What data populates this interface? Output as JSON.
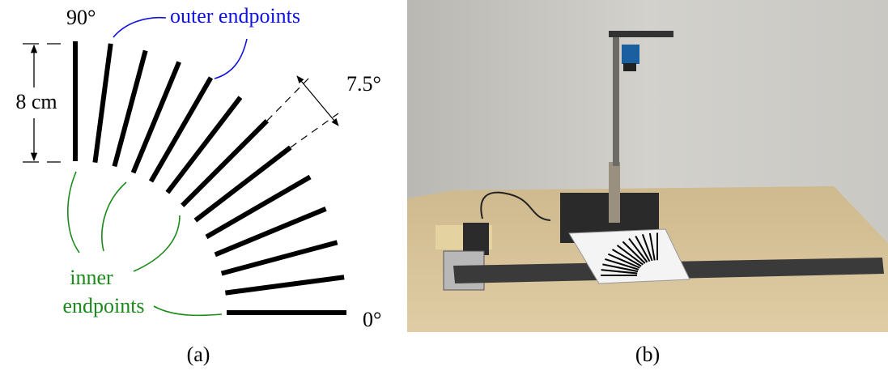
{
  "diagram": {
    "labels": {
      "angle_90": "90°",
      "outer_endpoints": "outer endpoints",
      "length": "8 cm",
      "step_angle": "7.5°",
      "inner_endpoints_line1": "inner",
      "inner_endpoints_line2": "endpoints",
      "angle_0": "0°"
    },
    "captions": {
      "a": "(a)",
      "b": "(b)"
    }
  }
}
